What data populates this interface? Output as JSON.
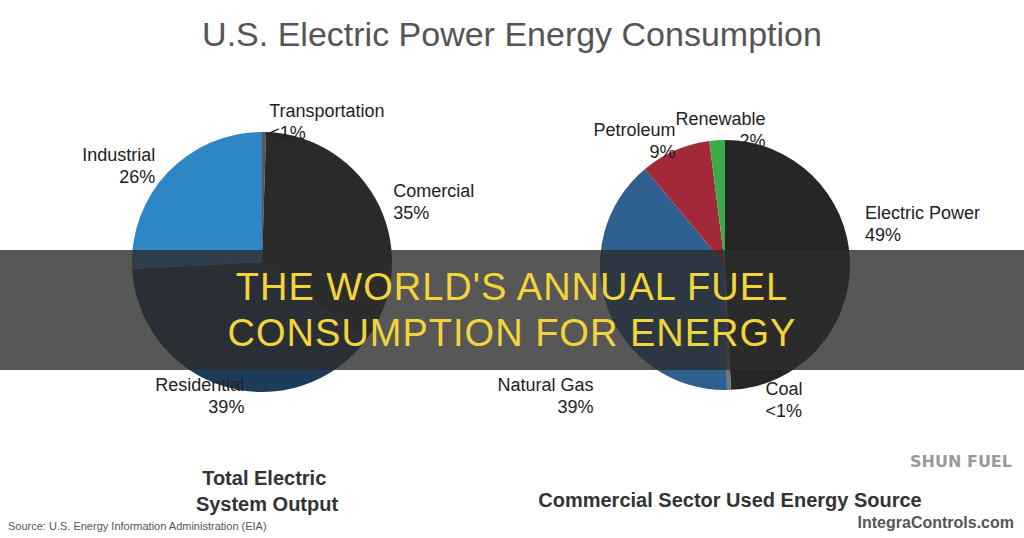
{
  "title": "U.S. Electric Power Energy Consumption",
  "banner": "THE WORLD'S ANNUAL FUEL CONSUMPTION FOR ENERGY",
  "source": "Source: U.S. Energy Information Administration (EIA)",
  "credit": "IntegraControls.com",
  "watermark": "SHUN FUEL",
  "chart_data": [
    {
      "type": "pie",
      "title": "Total Electric System Output",
      "categories": [
        "Transportation",
        "Comercial",
        "Residential",
        "Industrial"
      ],
      "values": [
        0.5,
        35,
        39,
        26
      ],
      "value_labels": [
        "<1%",
        "35%",
        "39%",
        "26%"
      ],
      "colors": [
        "#555555",
        "#2a2a2a",
        "#1f3b5a",
        "#2f86c4"
      ],
      "data_labels": true
    },
    {
      "type": "pie",
      "title": "Commercial Sector Used Energy Source",
      "categories": [
        "Electric Power",
        "Coal",
        "Natural Gas",
        "Petroleum",
        "Renewable"
      ],
      "values": [
        49,
        0.5,
        39,
        9,
        2
      ],
      "value_labels": [
        "49%",
        "<1%",
        "39%",
        "9%",
        "2%"
      ],
      "colors": [
        "#262626",
        "#777777",
        "#2f5f8f",
        "#a3283a",
        "#3daa4a"
      ],
      "data_labels": true
    }
  ]
}
